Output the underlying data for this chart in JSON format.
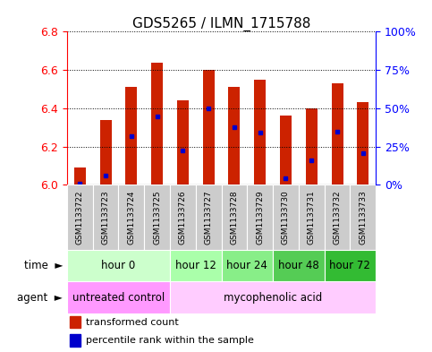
{
  "title": "GDS5265 / ILMN_1715788",
  "samples": [
    "GSM1133722",
    "GSM1133723",
    "GSM1133724",
    "GSM1133725",
    "GSM1133726",
    "GSM1133727",
    "GSM1133728",
    "GSM1133729",
    "GSM1133730",
    "GSM1133731",
    "GSM1133732",
    "GSM1133733"
  ],
  "bar_tops": [
    6.09,
    6.34,
    6.51,
    6.64,
    6.44,
    6.6,
    6.51,
    6.55,
    6.36,
    6.4,
    6.53,
    6.43
  ],
  "bar_base": 6.0,
  "percentile_values": [
    0.5,
    6.0,
    31.5,
    44.5,
    22.5,
    50.0,
    37.5,
    34.0,
    4.0,
    16.0,
    34.5,
    20.5
  ],
  "ylim": [
    6.0,
    6.8
  ],
  "yticks": [
    6.0,
    6.2,
    6.4,
    6.6,
    6.8
  ],
  "right_yticks": [
    0,
    25,
    50,
    75,
    100
  ],
  "bar_color": "#cc2200",
  "dot_color": "#0000cc",
  "plot_bg_color": "#ffffff",
  "sample_box_color": "#cccccc",
  "time_colors": [
    "#ccffcc",
    "#aaffaa",
    "#88ee88",
    "#55cc55",
    "#33bb33"
  ],
  "time_groups": [
    {
      "label": "hour 0",
      "start": 0,
      "end": 4
    },
    {
      "label": "hour 12",
      "start": 4,
      "end": 6
    },
    {
      "label": "hour 24",
      "start": 6,
      "end": 8
    },
    {
      "label": "hour 48",
      "start": 8,
      "end": 10
    },
    {
      "label": "hour 72",
      "start": 10,
      "end": 12
    }
  ],
  "agent_untreated_color": "#ff99ff",
  "agent_treated_color": "#ffccff",
  "agent_groups": [
    {
      "label": "untreated control",
      "start": 0,
      "end": 4
    },
    {
      "label": "mycophenolic acid",
      "start": 4,
      "end": 12
    }
  ],
  "legend_bar_color": "#cc2200",
  "legend_dot_color": "#0000cc",
  "tick_fontsize": 9,
  "title_fontsize": 11,
  "sample_fontsize": 6.5,
  "row_fontsize": 8.5,
  "legend_fontsize": 8
}
